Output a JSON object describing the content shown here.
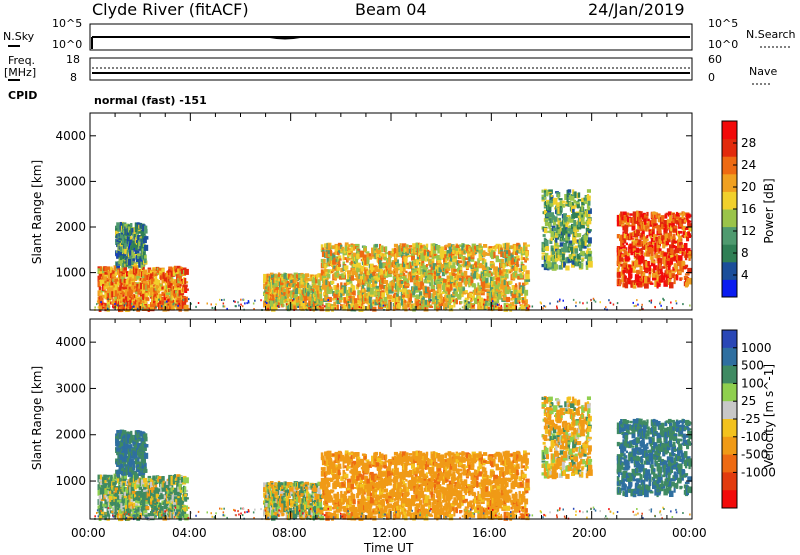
{
  "header": {
    "station": "Clyde River (fitACF)",
    "beam": "Beam 04",
    "date": "24/Jan/2019"
  },
  "nsky_panel": {
    "left_label": "N.Sky",
    "left_ticks": [
      "10^5",
      "10^0"
    ],
    "right_label": "N.Search",
    "right_ticks": [
      "10^5",
      "10^0"
    ]
  },
  "freq_panel": {
    "left_label_line1": "Freq.",
    "left_label_line2": "[MHz]",
    "left_ticks": [
      "18",
      "8"
    ],
    "right_label": "Nave",
    "right_ticks": [
      "60",
      "0"
    ]
  },
  "cpid_panel": {
    "label": "CPID",
    "value": "normal (fast) -151"
  },
  "x_axis": {
    "title": "Time UT",
    "ticks": [
      "00:00",
      "04:00",
      "08:00",
      "12:00",
      "16:00",
      "20:00",
      "00:00"
    ]
  },
  "chart_data": [
    {
      "type": "heatmap",
      "title": "Power",
      "xlabel": "Time UT",
      "ylabel": "Slant Range [km]",
      "xlim": [
        "00:00",
        "24:00"
      ],
      "ylim": [
        180,
        4500
      ],
      "yticks": [
        1000,
        2000,
        3000,
        4000
      ],
      "colorbar": {
        "label": "Power [dB]",
        "ticks": [
          4,
          8,
          12,
          16,
          20,
          24,
          28
        ],
        "range": [
          0,
          32
        ],
        "colors": [
          "#0a1cf0",
          "#1b4e9a",
          "#2f7f55",
          "#4f9a6f",
          "#9ac44a",
          "#f1d02c",
          "#f0a020",
          "#ee6a12",
          "#e22a0c",
          "#f20a0a"
        ]
      },
      "echo_regions": [
        {
          "t_start": 0.3,
          "t_end": 3.8,
          "r_min": 200,
          "r_max": 1100,
          "level": 22
        },
        {
          "t_start": 1.0,
          "t_end": 2.2,
          "r_min": 1150,
          "r_max": 2050,
          "level": 10
        },
        {
          "t_start": 6.9,
          "t_end": 9.2,
          "r_min": 200,
          "r_max": 950,
          "level": 18
        },
        {
          "t_start": 9.2,
          "t_end": 17.4,
          "r_min": 200,
          "r_max": 1600,
          "level": 18
        },
        {
          "t_start": 18.0,
          "t_end": 19.9,
          "r_min": 1100,
          "r_max": 2800,
          "level": 12
        },
        {
          "t_start": 21.0,
          "t_end": 23.9,
          "r_min": 700,
          "r_max": 2300,
          "level": 26
        }
      ]
    },
    {
      "type": "heatmap",
      "title": "Velocity",
      "xlabel": "Time UT",
      "ylabel": "Slant Range [km]",
      "xlim": [
        "00:00",
        "24:00"
      ],
      "ylim": [
        180,
        4500
      ],
      "yticks": [
        1000,
        2000,
        3000,
        4000
      ],
      "colorbar": {
        "label": "Velocity [m s^-1]",
        "ticks": [
          1000,
          500,
          100,
          25,
          -25,
          -100,
          -500,
          -1000
        ],
        "colors": [
          "#2a47b6",
          "#2f6fa0",
          "#3f8a62",
          "#8fcf4e",
          "#c8c8c8",
          "#f3c21e",
          "#f09a16",
          "#ee6a12",
          "#e23b0e",
          "#f20a0a"
        ]
      },
      "echo_regions": [
        {
          "t_start": 0.3,
          "t_end": 3.8,
          "r_min": 200,
          "r_max": 1100,
          "velocity": 100
        },
        {
          "t_start": 1.0,
          "t_end": 2.2,
          "r_min": 1150,
          "r_max": 2050,
          "velocity": 500
        },
        {
          "t_start": 6.9,
          "t_end": 9.2,
          "r_min": 200,
          "r_max": 950,
          "velocity": 25
        },
        {
          "t_start": 9.2,
          "t_end": 17.4,
          "r_min": 200,
          "r_max": 1600,
          "velocity": -300
        },
        {
          "t_start": 18.0,
          "t_end": 19.9,
          "r_min": 1100,
          "r_max": 2800,
          "velocity": -100
        },
        {
          "t_start": 21.0,
          "t_end": 23.9,
          "r_min": 700,
          "r_max": 2300,
          "velocity": 500
        }
      ]
    }
  ],
  "style": {
    "frame_color": "#000000",
    "background": "#ffffff"
  }
}
